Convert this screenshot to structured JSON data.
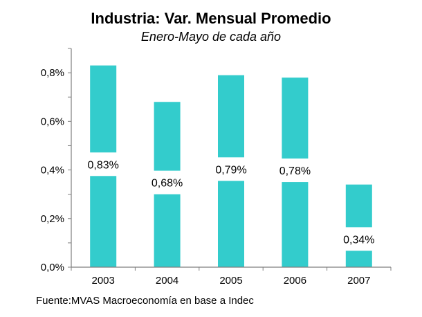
{
  "chart_data": {
    "type": "bar",
    "title": "Industria: Var. Mensual Promedio",
    "subtitle": "Enero-Mayo de cada año",
    "categories": [
      "2003",
      "2004",
      "2005",
      "2006",
      "2007"
    ],
    "values": [
      0.83,
      0.68,
      0.79,
      0.78,
      0.34
    ],
    "data_labels": [
      "0,83%",
      "0,68%",
      "0,79%",
      "0,78%",
      "0,34%"
    ],
    "y_ticks": [
      "0,0%",
      "0,2%",
      "0,4%",
      "0,6%",
      "0,8%"
    ],
    "y_tick_values": [
      0,
      0.2,
      0.4,
      0.6,
      0.8
    ],
    "ylim": [
      0,
      0.9
    ],
    "xlabel": "",
    "ylabel": "",
    "grid": false,
    "legend": "none",
    "bar_color": "#33CCCC",
    "source": "Fuente:MVAS Macroeconomía en base a Indec"
  }
}
